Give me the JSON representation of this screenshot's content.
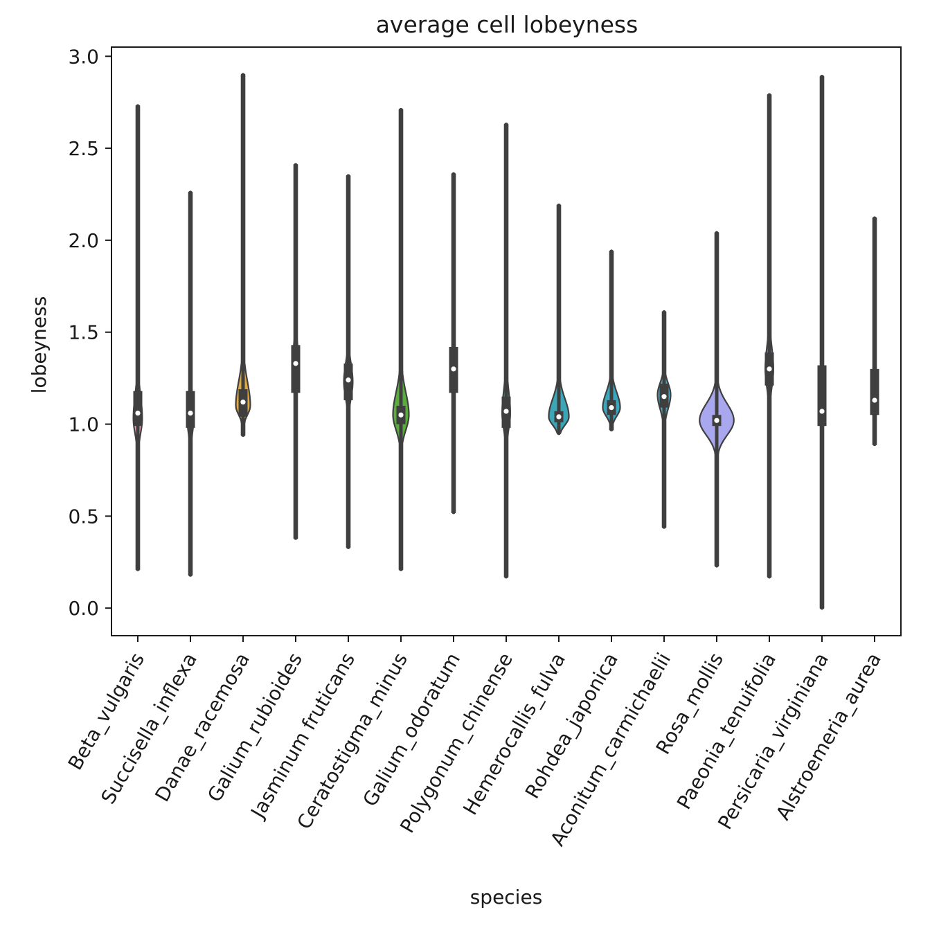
{
  "chart_data": {
    "type": "violin",
    "title": "average cell lobeyness",
    "xlabel": "species",
    "ylabel": "lobeyness",
    "ylim": [
      -0.15,
      3.05
    ],
    "yticks": [
      0.0,
      0.5,
      1.0,
      1.5,
      2.0,
      2.5,
      3.0
    ],
    "ytick_labels": [
      "0.0",
      "0.5",
      "1.0",
      "1.5",
      "2.0",
      "2.5",
      "3.0"
    ],
    "grid": false,
    "legend": "none",
    "categories": [
      "Beta_vulgaris",
      "Succisella_inflexa",
      "Danae_racemosa",
      "Galium_rubioides",
      "Jasminum fruticans",
      "Ceratostigma_minus",
      "Galium_odoratum",
      "Polygonum_chinense",
      "Hemerocallis_fulva",
      "Rohdea_japonica",
      "Aconitum_carmichaelii",
      "Rosa_mollis",
      "Paeonia_tenuifolia",
      "Persicaria_virginiana",
      "Alstroemeria_aurea"
    ],
    "series": [
      {
        "category": "Beta_vulgaris",
        "min": 0.21,
        "max": 2.73,
        "q1": 0.99,
        "median": 1.06,
        "q3": 1.18,
        "mode": 1.03,
        "peak_halfwidth": 0.06,
        "color": "#e8a0bf"
      },
      {
        "category": "Succisella_inflexa",
        "min": 0.18,
        "max": 2.26,
        "q1": 0.98,
        "median": 1.06,
        "q3": 1.18,
        "mode": 1.04,
        "peak_halfwidth": 0.045,
        "color": "#e3c98a"
      },
      {
        "category": "Danae_racemosa",
        "min": 0.94,
        "max": 2.9,
        "q1": 1.04,
        "median": 1.12,
        "q3": 1.19,
        "mode": 1.1,
        "peak_halfwidth": 0.1,
        "color": "#e0a840"
      },
      {
        "category": "Galium_rubioides",
        "min": 0.38,
        "max": 2.41,
        "q1": 1.17,
        "median": 1.33,
        "q3": 1.43,
        "mode": 1.35,
        "peak_halfwidth": 0.035,
        "color": "#c9a46a"
      },
      {
        "category": "Jasminum fruticans",
        "min": 0.33,
        "max": 2.35,
        "q1": 1.13,
        "median": 1.24,
        "q3": 1.33,
        "mode": 1.23,
        "peak_halfwidth": 0.06,
        "color": "#c5b36b"
      },
      {
        "category": "Ceratostigma_minus",
        "min": 0.21,
        "max": 2.71,
        "q1": 1.0,
        "median": 1.05,
        "q3": 1.1,
        "mode": 1.05,
        "peak_halfwidth": 0.11,
        "color": "#5aad3c"
      },
      {
        "category": "Galium_odoratum",
        "min": 0.52,
        "max": 2.36,
        "q1": 1.17,
        "median": 1.3,
        "q3": 1.42,
        "mode": 1.3,
        "peak_halfwidth": 0.035,
        "color": "#5bb06a"
      },
      {
        "category": "Polygonum_chinense",
        "min": 0.17,
        "max": 2.63,
        "q1": 0.98,
        "median": 1.07,
        "q3": 1.15,
        "mode": 1.06,
        "peak_halfwidth": 0.055,
        "color": "#40aa8a"
      },
      {
        "category": "Hemerocallis_fulva",
        "min": 0.95,
        "max": 2.19,
        "q1": 1.01,
        "median": 1.04,
        "q3": 1.07,
        "mode": 1.04,
        "peak_halfwidth": 0.14,
        "color": "#3aa6b6"
      },
      {
        "category": "Rohdea_japonica",
        "min": 0.97,
        "max": 1.94,
        "q1": 1.05,
        "median": 1.09,
        "q3": 1.13,
        "mode": 1.09,
        "peak_halfwidth": 0.12,
        "color": "#3aa7bf"
      },
      {
        "category": "Aconitum_carmichaelii",
        "min": 0.44,
        "max": 1.61,
        "q1": 1.09,
        "median": 1.15,
        "q3": 1.22,
        "mode": 1.16,
        "peak_halfwidth": 0.09,
        "color": "#4aa8c9"
      },
      {
        "category": "Rosa_mollis",
        "min": 0.23,
        "max": 2.04,
        "q1": 0.99,
        "median": 1.02,
        "q3": 1.05,
        "mode": 1.02,
        "peak_halfwidth": 0.24,
        "color": "#a9a8ef"
      },
      {
        "category": "Paeonia_tenuifolia",
        "min": 0.17,
        "max": 2.79,
        "q1": 1.21,
        "median": 1.3,
        "q3": 1.39,
        "mode": 1.3,
        "peak_halfwidth": 0.055,
        "color": "#c8a0d8"
      },
      {
        "category": "Persicaria_virginiana",
        "min": 0.0,
        "max": 2.89,
        "q1": 0.99,
        "median": 1.07,
        "q3": 1.32,
        "mode": 1.06,
        "peak_halfwidth": 0.025,
        "color": "#e08fd0"
      },
      {
        "category": "Alstroemeria_aurea",
        "min": 0.89,
        "max": 2.12,
        "q1": 1.05,
        "median": 1.13,
        "q3": 1.3,
        "mode": 1.12,
        "peak_halfwidth": 0.05,
        "color": "#e49ab2"
      }
    ]
  }
}
